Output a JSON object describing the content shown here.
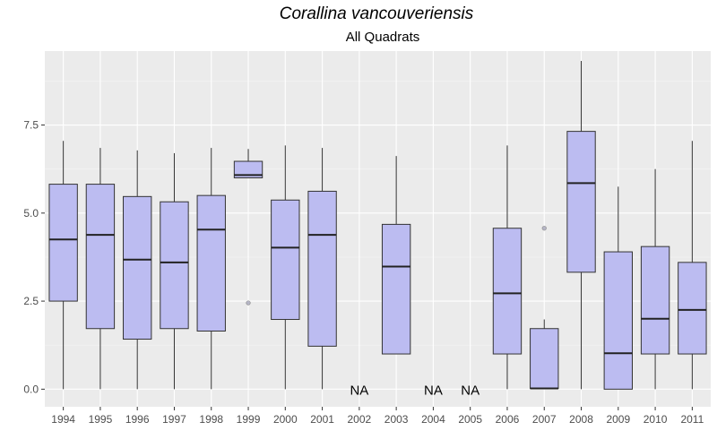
{
  "chart_data": {
    "type": "box",
    "title": "Corallina vancouveriensis",
    "subtitle": "All Quadrats",
    "xlabel": "",
    "ylabel": "",
    "ylim": [
      -0.5,
      9.6
    ],
    "y_ticks": [
      "0.0",
      "2.5",
      "5.0",
      "7.5"
    ],
    "grid": true,
    "colors": {
      "panel": "#ebebeb",
      "grid_major": "#ffffff",
      "grid_minor": "#f5f5f5",
      "box_fill": "#bcbcf1",
      "box_stroke": "#333333",
      "text": "#4d4d4d"
    },
    "missing_label": "NA",
    "categories": [
      "1994",
      "1995",
      "1996",
      "1997",
      "1998",
      "1999",
      "2000",
      "2001",
      "2002",
      "2003",
      "2004",
      "2005",
      "2006",
      "2007",
      "2008",
      "2009",
      "2010",
      "2011"
    ],
    "boxes": [
      {
        "x": "1994",
        "min": 0.0,
        "q1": 2.5,
        "median": 4.25,
        "q3": 5.82,
        "max": 7.05,
        "outliers": []
      },
      {
        "x": "1995",
        "min": 0.0,
        "q1": 1.72,
        "median": 4.38,
        "q3": 5.82,
        "max": 6.85,
        "outliers": []
      },
      {
        "x": "1996",
        "min": 0.0,
        "q1": 1.42,
        "median": 3.68,
        "q3": 5.47,
        "max": 6.78,
        "outliers": []
      },
      {
        "x": "1997",
        "min": 0.0,
        "q1": 1.72,
        "median": 3.6,
        "q3": 5.32,
        "max": 6.7,
        "outliers": []
      },
      {
        "x": "1998",
        "min": 0.0,
        "q1": 1.65,
        "median": 4.53,
        "q3": 5.5,
        "max": 6.85,
        "outliers": []
      },
      {
        "x": "1999",
        "min": 6.0,
        "q1": 6.0,
        "median": 6.08,
        "q3": 6.47,
        "max": 6.82,
        "outliers": [
          2.45
        ]
      },
      {
        "x": "2000",
        "min": 0.0,
        "q1": 1.98,
        "median": 4.02,
        "q3": 5.37,
        "max": 6.92,
        "outliers": []
      },
      {
        "x": "2001",
        "min": 0.0,
        "q1": 1.22,
        "median": 4.38,
        "q3": 5.62,
        "max": 6.85,
        "outliers": []
      },
      {
        "x": "2002",
        "missing": true
      },
      {
        "x": "2003",
        "min": 1.0,
        "q1": 1.0,
        "median": 3.48,
        "q3": 4.68,
        "max": 6.62,
        "outliers": []
      },
      {
        "x": "2004",
        "missing": true
      },
      {
        "x": "2005",
        "missing": true
      },
      {
        "x": "2006",
        "min": 0.0,
        "q1": 1.0,
        "median": 2.72,
        "q3": 4.57,
        "max": 6.92,
        "outliers": []
      },
      {
        "x": "2007",
        "min": 0.0,
        "q1": 0.02,
        "median": 0.02,
        "q3": 1.72,
        "max": 1.98,
        "outliers": [
          4.57
        ]
      },
      {
        "x": "2008",
        "min": 0.0,
        "q1": 3.32,
        "median": 5.85,
        "q3": 7.32,
        "max": 9.32,
        "outliers": []
      },
      {
        "x": "2009",
        "min": 0.0,
        "q1": 0.0,
        "median": 1.02,
        "q3": 3.9,
        "max": 5.75,
        "outliers": []
      },
      {
        "x": "2010",
        "min": 0.0,
        "q1": 1.0,
        "median": 2.0,
        "q3": 4.05,
        "max": 6.25,
        "outliers": []
      },
      {
        "x": "2011",
        "min": 0.0,
        "q1": 1.0,
        "median": 2.25,
        "q3": 3.6,
        "max": 7.05,
        "outliers": []
      }
    ]
  }
}
